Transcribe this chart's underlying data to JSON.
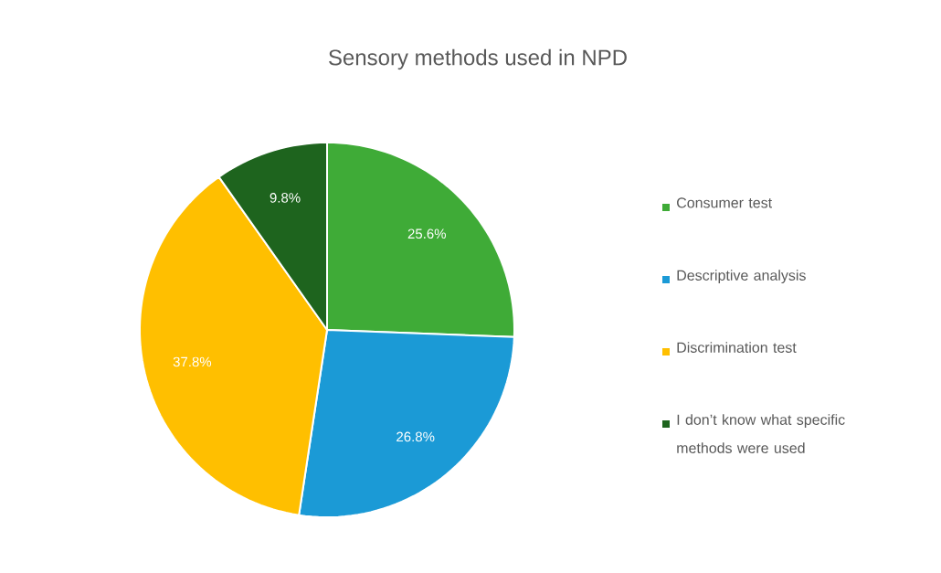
{
  "chart_data": {
    "type": "pie",
    "title": "Sensory methods used in NPD",
    "categories": [
      "Consumer test",
      "Descriptive analysis",
      "Discrimination test",
      "I don’t know what specific methods were used"
    ],
    "values": [
      25.6,
      26.8,
      37.8,
      9.8
    ],
    "colors": [
      "#3fab37",
      "#1b9ad6",
      "#ffbf00",
      "#1e641e"
    ],
    "value_labels": [
      "25.6%",
      "26.8%",
      "37.8%",
      "9.8%"
    ],
    "legend": "right"
  }
}
